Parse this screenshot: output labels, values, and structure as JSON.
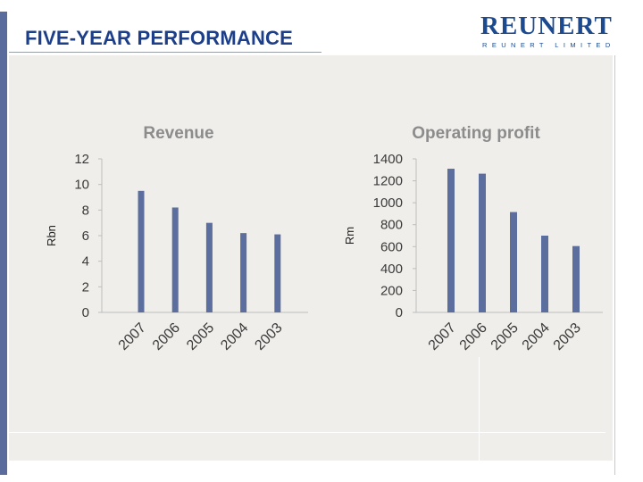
{
  "slide": {
    "title": "FIVE-YEAR PERFORMANCE"
  },
  "logo": {
    "main": "REUNERT",
    "sub": "REUNERT LIMITED"
  },
  "colors": {
    "bar": "#5c6e9e",
    "title": "#1d3f8a",
    "logo": "#1d4a8f",
    "chart_title": "#8c8c8c",
    "axis_text": "#3a3a3a",
    "panel": "#efeeeb"
  },
  "chart_data": [
    {
      "type": "bar",
      "title": "Revenue",
      "ylabel": "Rbn",
      "xlabel": "",
      "categories": [
        "2007",
        "2006",
        "2005",
        "2004",
        "2003"
      ],
      "values": [
        9.5,
        8.2,
        7.0,
        6.2,
        6.1
      ],
      "ylim": [
        0,
        12
      ],
      "yticks": [
        0,
        2,
        4,
        6,
        8,
        10,
        12
      ],
      "grid": false,
      "legend": "none"
    },
    {
      "type": "bar",
      "title": "Operating profit",
      "ylabel": "Rm",
      "xlabel": "",
      "categories": [
        "2007",
        "2006",
        "2005",
        "2004",
        "2003"
      ],
      "values": [
        1310,
        1265,
        915,
        700,
        605
      ],
      "ylim": [
        0,
        1400
      ],
      "yticks": [
        0,
        200,
        400,
        600,
        800,
        1000,
        1200,
        1400
      ],
      "grid": false,
      "legend": "none"
    }
  ]
}
